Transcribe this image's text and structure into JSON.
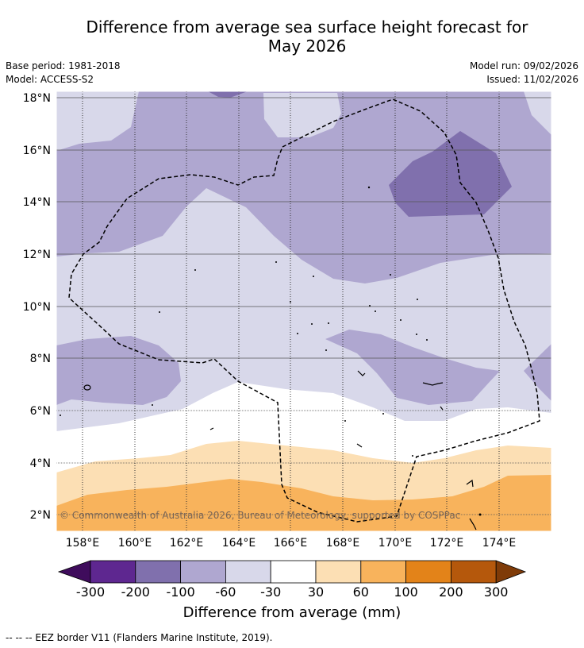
{
  "title_line1": "Difference from average sea surface height forecast for",
  "title_line2": "May 2026",
  "base_period": "Base period: 1981-2018",
  "model": "Model: ACCESS-S2",
  "model_run": "Model run: 09/02/2026",
  "issued": "Issued: 11/02/2026",
  "latitude_labels": [
    "18°N",
    "16°N",
    "14°N",
    "12°N",
    "10°N",
    "8°N",
    "6°N",
    "4°N",
    "2°N"
  ],
  "longitude_labels": [
    "158°E",
    "160°E",
    "162°E",
    "164°E",
    "166°E",
    "168°E",
    "170°E",
    "172°E",
    "174°E"
  ],
  "copyright": "© Commonwealth of Australia 2026, Bureau of Meteorology, supported by COSPPac",
  "colorbar": {
    "ticks": [
      "-300",
      "-200",
      "-100",
      "-60",
      "-30",
      "30",
      "60",
      "100",
      "200",
      "300"
    ],
    "colors": [
      "#3f0c5c",
      "#5e2790",
      "#8070ad",
      "#afa7d0",
      "#d8d8ea",
      "#ffffff",
      "#fcdfb4",
      "#f8b35c",
      "#e38319",
      "#b5580c",
      "#7f3b08"
    ],
    "label": "Difference from average (mm)"
  },
  "footnote": "--  --  -- EEZ border V11 (Flanders Marine Institute, 2019)."
}
